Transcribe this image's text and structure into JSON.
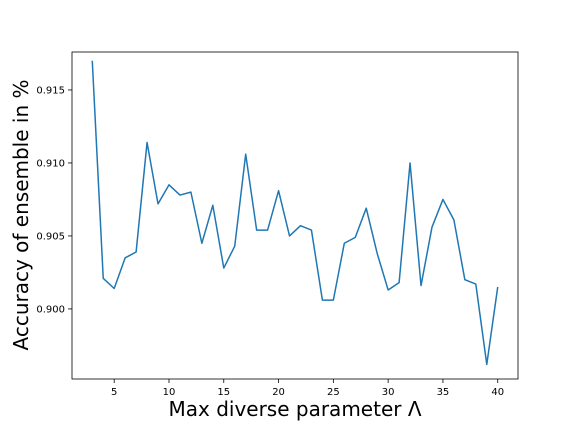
{
  "chart_data": {
    "type": "line",
    "title": "",
    "xlabel": "Max diverse parameter Λ",
    "ylabel": "Accuracy of ensemble in %",
    "xlim": [
      1.15,
      41.85
    ],
    "ylim": [
      0.8952,
      0.9176
    ],
    "xticks": [
      5,
      10,
      15,
      20,
      25,
      30,
      35,
      40
    ],
    "yticks": [
      0.9,
      0.905,
      0.91,
      0.915
    ],
    "ytick_labels": [
      "0.900",
      "0.905",
      "0.910",
      "0.915"
    ],
    "grid": false,
    "series": [
      {
        "color": "#1f77b4",
        "x": [
          3,
          4,
          5,
          6,
          7,
          8,
          9,
          10,
          11,
          12,
          13,
          14,
          15,
          16,
          17,
          18,
          19,
          20,
          21,
          22,
          23,
          24,
          25,
          26,
          27,
          28,
          29,
          30,
          31,
          32,
          33,
          34,
          35,
          36,
          37,
          38,
          39,
          40
        ],
        "y": [
          0.917,
          0.9021,
          0.9014,
          0.9035,
          0.9039,
          0.9114,
          0.9072,
          0.9085,
          0.9078,
          0.908,
          0.9045,
          0.9071,
          0.9028,
          0.9043,
          0.9106,
          0.9054,
          0.9054,
          0.9081,
          0.905,
          0.9057,
          0.9054,
          0.9006,
          0.9006,
          0.9045,
          0.9049,
          0.9069,
          0.9038,
          0.9013,
          0.9018,
          0.91,
          0.9016,
          0.9056,
          0.9075,
          0.9061,
          0.902,
          0.9017,
          0.8962,
          0.9015
        ]
      }
    ]
  }
}
